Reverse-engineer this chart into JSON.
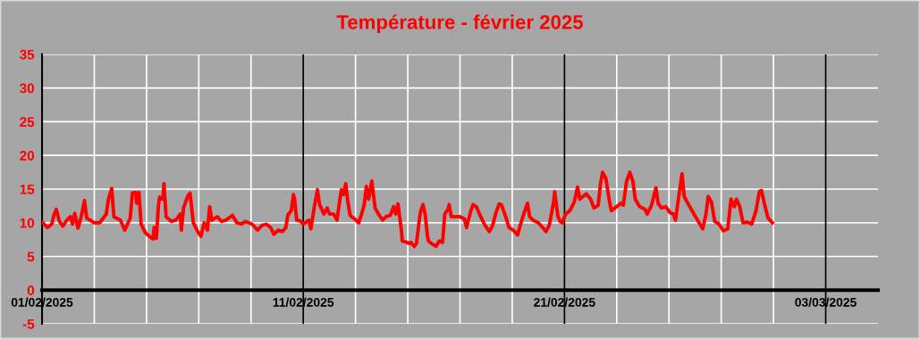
{
  "chart_data": {
    "type": "line",
    "title": "Température - février 2025",
    "x": [
      "2025-02-01T00:00",
      "2025-02-01T05:00",
      "2025-02-01T09:00",
      "2025-02-01T11:00",
      "2025-02-01T13:00",
      "2025-02-01T16:00",
      "2025-02-01T19:00",
      "2025-02-01T23:00",
      "2025-02-02T02:00",
      "2025-02-02T04:00",
      "2025-02-02T06:00",
      "2025-02-02T09:00",
      "2025-02-02T12:00",
      "2025-02-02T15:00",
      "2025-02-02T17:00",
      "2025-02-03T00:00",
      "2025-02-03T05:00",
      "2025-02-03T11:00",
      "2025-02-03T13:00",
      "2025-02-03T16:00",
      "2025-02-03T18:00",
      "2025-02-04T00:00",
      "2025-02-04T04:00",
      "2025-02-04T09:00",
      "2025-02-04T11:00",
      "2025-02-04T14:00",
      "2025-02-04T15:00",
      "2025-02-04T17:00",
      "2025-02-04T19:00",
      "2025-02-04T23:00",
      "2025-02-05T04:00",
      "2025-02-05T06:00",
      "2025-02-05T07:00",
      "2025-02-05T09:00",
      "2025-02-05T10:00",
      "2025-02-05T11:00",
      "2025-02-05T12:00",
      "2025-02-05T15:00",
      "2025-02-05T16:00",
      "2025-02-05T18:00",
      "2025-02-05T23:00",
      "2025-02-06T03:00",
      "2025-02-06T07:00",
      "2025-02-06T08:00",
      "2025-02-06T10:00",
      "2025-02-06T14:00",
      "2025-02-06T16:00",
      "2025-02-06T19:00",
      "2025-02-06T23:00",
      "2025-02-07T02:00",
      "2025-02-07T05:00",
      "2025-02-07T08:00",
      "2025-02-07T10:00",
      "2025-02-07T12:00",
      "2025-02-07T17:00",
      "2025-02-07T21:00",
      "2025-02-08T01:00",
      "2025-02-08T07:00",
      "2025-02-08T11:00",
      "2025-02-08T15:00",
      "2025-02-08T19:00",
      "2025-02-09T01:00",
      "2025-02-09T06:00",
      "2025-02-09T10:00",
      "2025-02-09T14:00",
      "2025-02-09T18:00",
      "2025-02-09T21:00",
      "2025-02-10T01:00",
      "2025-02-10T05:00",
      "2025-02-10T08:00",
      "2025-02-10T10:00",
      "2025-02-10T13:00",
      "2025-02-10T15:00",
      "2025-02-10T16:00",
      "2025-02-10T18:00",
      "2025-02-10T22:00",
      "2025-02-11T00:00",
      "2025-02-11T05:00",
      "2025-02-11T07:00",
      "2025-02-11T10:00",
      "2025-02-11T13:00",
      "2025-02-11T15:00",
      "2025-02-11T19:00",
      "2025-02-11T22:00",
      "2025-02-12T00:00",
      "2025-02-12T04:00",
      "2025-02-12T07:00",
      "2025-02-12T09:00",
      "2025-02-12T11:00",
      "2025-02-12T13:00",
      "2025-02-12T15:00",
      "2025-02-12T17:00",
      "2025-02-12T19:00",
      "2025-02-12T23:00",
      "2025-02-13T03:00",
      "2025-02-13T06:00",
      "2025-02-13T08:00",
      "2025-02-13T10:00",
      "2025-02-13T12:00",
      "2025-02-13T15:00",
      "2025-02-13T18:00",
      "2025-02-13T21:00",
      "2025-02-14T01:00",
      "2025-02-14T04:00",
      "2025-02-14T08:00",
      "2025-02-14T11:00",
      "2025-02-14T13:00",
      "2025-02-14T15:00",
      "2025-02-14T18:00",
      "2025-02-14T19:00",
      "2025-02-14T23:00",
      "2025-02-15T02:00",
      "2025-02-15T03:00",
      "2025-02-15T06:00",
      "2025-02-15T08:00",
      "2025-02-15T11:00",
      "2025-02-15T12:00",
      "2025-02-15T14:00",
      "2025-02-15T16:00",
      "2025-02-15T18:00",
      "2025-02-15T19:00",
      "2025-02-15T22:00",
      "2025-02-16T02:00",
      "2025-02-16T05:00",
      "2025-02-16T08:00",
      "2025-02-16T10:00",
      "2025-02-16T13:00",
      "2025-02-16T14:00",
      "2025-02-16T16:00",
      "2025-02-16T20:00",
      "2025-02-17T00:00",
      "2025-02-17T04:00",
      "2025-02-17T06:00",
      "2025-02-17T10:00",
      "2025-02-17T12:00",
      "2025-02-17T15:00",
      "2025-02-17T19:00",
      "2025-02-17T23:00",
      "2025-02-18T03:00",
      "2025-02-18T06:00",
      "2025-02-18T09:00",
      "2025-02-18T12:00",
      "2025-02-18T14:00",
      "2025-02-18T18:00",
      "2025-02-18T21:00",
      "2025-02-19T01:00",
      "2025-02-19T05:00",
      "2025-02-19T08:00",
      "2025-02-19T11:00",
      "2025-02-19T14:00",
      "2025-02-19T16:00",
      "2025-02-19T19:00",
      "2025-02-20T00:00",
      "2025-02-20T05:00",
      "2025-02-20T07:00",
      "2025-02-20T10:00",
      "2025-02-20T12:00",
      "2025-02-20T14:00",
      "2025-02-20T15:00",
      "2025-02-20T18:00",
      "2025-02-20T20:00",
      "2025-02-20T22:00",
      "2025-02-21T01:00",
      "2025-02-21T05:00",
      "2025-02-21T09:00",
      "2025-02-21T12:00",
      "2025-02-21T14:00",
      "2025-02-21T20:00",
      "2025-02-22T00:00",
      "2025-02-22T03:00",
      "2025-02-22T07:00",
      "2025-02-22T09:00",
      "2025-02-22T11:00",
      "2025-02-22T14:00",
      "2025-02-22T17:00",
      "2025-02-22T19:00",
      "2025-02-23T00:00",
      "2025-02-23T04:00",
      "2025-02-23T06:00",
      "2025-02-23T09:00",
      "2025-02-23T12:00",
      "2025-02-23T15:00",
      "2025-02-23T17:00",
      "2025-02-23T21:00",
      "2025-02-24T02:00",
      "2025-02-24T04:00",
      "2025-02-24T08:00",
      "2025-02-24T12:00",
      "2025-02-24T14:00",
      "2025-02-24T17:00",
      "2025-02-24T21:00",
      "2025-02-25T01:00",
      "2025-02-25T04:00",
      "2025-02-25T06:00",
      "2025-02-25T09:00",
      "2025-02-25T12:00",
      "2025-02-25T14:00",
      "2025-02-25T19:00",
      "2025-02-25T23:00",
      "2025-02-26T03:00",
      "2025-02-26T07:00",
      "2025-02-26T10:00",
      "2025-02-26T12:00",
      "2025-02-26T15:00",
      "2025-02-26T18:00",
      "2025-02-26T22:00",
      "2025-02-27T02:00",
      "2025-02-27T06:00",
      "2025-02-27T09:00",
      "2025-02-27T12:00",
      "2025-02-27T14:00",
      "2025-02-27T17:00",
      "2025-02-27T20:00",
      "2025-02-28T00:00",
      "2025-02-28T04:00",
      "2025-02-28T08:00",
      "2025-02-28T11:00",
      "2025-02-28T13:00",
      "2025-02-28T16:00",
      "2025-02-28T19:00",
      "2025-02-28T23:00"
    ],
    "series": [
      {
        "color": "#ff0000",
        "values": [
          10.1,
          9.3,
          9.8,
          11.2,
          12.0,
          10.2,
          9.5,
          10.4,
          10.9,
          9.8,
          11.4,
          9.2,
          10.9,
          13.3,
          10.7,
          10.0,
          10.0,
          11.3,
          13.5,
          15.1,
          10.9,
          10.4,
          8.9,
          10.7,
          14.4,
          14.5,
          12.9,
          14.5,
          9.8,
          8.5,
          7.8,
          7.6,
          9.3,
          7.7,
          10.2,
          12.7,
          13.8,
          13.5,
          15.8,
          10.9,
          10.2,
          10.4,
          11.3,
          8.9,
          12.2,
          14.0,
          14.4,
          10.0,
          8.7,
          8.0,
          10.0,
          8.9,
          12.4,
          10.4,
          10.9,
          10.2,
          10.4,
          11.1,
          10.0,
          9.8,
          10.2,
          9.8,
          8.9,
          9.6,
          9.8,
          9.3,
          8.3,
          8.9,
          8.7,
          9.3,
          11.2,
          11.8,
          14.2,
          13.5,
          10.4,
          10.2,
          9.8,
          10.4,
          9.1,
          12.2,
          14.9,
          12.7,
          11.3,
          12.2,
          11.3,
          11.3,
          10.4,
          12.7,
          14.9,
          14.2,
          15.8,
          13.1,
          11.1,
          10.6,
          10.0,
          11.5,
          12.7,
          15.4,
          13.5,
          16.2,
          12.2,
          11.3,
          10.4,
          10.9,
          11.1,
          12.4,
          11.3,
          12.8,
          9.1,
          7.3,
          7.1,
          6.9,
          7.1,
          6.5,
          6.9,
          10.9,
          11.8,
          12.7,
          11.3,
          8.2,
          7.3,
          6.9,
          6.5,
          7.3,
          7.1,
          11.3,
          12.0,
          12.7,
          10.9,
          10.9,
          10.9,
          10.6,
          9.3,
          11.8,
          12.7,
          12.4,
          10.9,
          9.6,
          8.7,
          9.6,
          11.5,
          12.8,
          12.7,
          10.9,
          9.3,
          8.9,
          8.2,
          10.0,
          11.5,
          12.9,
          10.9,
          10.4,
          10.0,
          9.1,
          8.7,
          9.6,
          11.3,
          13.1,
          14.6,
          10.9,
          10.2,
          10.0,
          11.3,
          11.8,
          13.1,
          15.3,
          13.5,
          14.3,
          13.5,
          12.2,
          12.6,
          15.7,
          17.5,
          16.6,
          13.5,
          11.8,
          12.4,
          12.9,
          12.6,
          16.1,
          17.5,
          16.1,
          13.5,
          12.4,
          12.0,
          11.3,
          12.6,
          15.2,
          12.9,
          12.2,
          12.4,
          11.5,
          11.3,
          10.4,
          13.9,
          17.3,
          13.9,
          12.4,
          11.3,
          10.2,
          9.1,
          11.3,
          13.9,
          13.1,
          10.2,
          9.8,
          8.8,
          9.1,
          13.5,
          12.4,
          13.5,
          12.4,
          10.0,
          10.1,
          9.8,
          11.8,
          14.6,
          14.8,
          12.6,
          10.7,
          10.0
        ]
      }
    ],
    "xlim": [
      "2025-02-01",
      "2025-03-05"
    ],
    "xticks": [
      {
        "value": "2025-02-01",
        "label": "01/02/2025"
      },
      {
        "value": "2025-02-03",
        "label": null
      },
      {
        "value": "2025-02-05",
        "label": null
      },
      {
        "value": "2025-02-07",
        "label": null
      },
      {
        "value": "2025-02-09",
        "label": null
      },
      {
        "value": "2025-02-11",
        "label": "11/02/2025"
      },
      {
        "value": "2025-02-13",
        "label": null
      },
      {
        "value": "2025-02-15",
        "label": null
      },
      {
        "value": "2025-02-17",
        "label": null
      },
      {
        "value": "2025-02-19",
        "label": null
      },
      {
        "value": "2025-02-21",
        "label": "21/02/2025"
      },
      {
        "value": "2025-02-23",
        "label": null
      },
      {
        "value": "2025-02-25",
        "label": null
      },
      {
        "value": "2025-02-27",
        "label": null
      },
      {
        "value": "2025-03-01",
        "label": null
      },
      {
        "value": "2025-03-03",
        "label": "03/03/2025"
      }
    ],
    "ylim": [
      -5,
      35
    ],
    "yticks": [
      -5,
      0,
      5,
      10,
      15,
      20,
      25,
      30,
      35
    ],
    "grid": true,
    "line_style": "solid",
    "marker": "none"
  }
}
